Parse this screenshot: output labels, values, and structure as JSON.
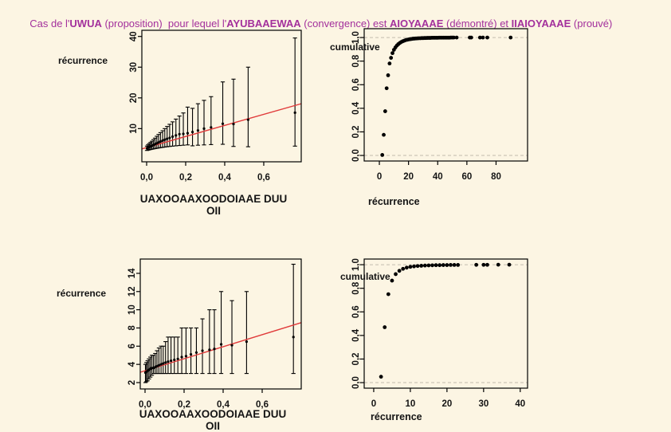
{
  "page": {
    "background": "#fcf5e3",
    "text_color": "#141414"
  },
  "title": {
    "color": "#a3309c",
    "segments": [
      {
        "text": "Cas de l'",
        "bold": false
      },
      {
        "text": "UWUA",
        "bold": true
      },
      {
        "text": " (proposition)  pour lequel l'",
        "bold": false
      },
      {
        "text": "AYUBAAEWAA",
        "bold": true
      },
      {
        "text": " (convergence) est ",
        "bold": false
      },
      {
        "text": "AIOYAAAE",
        "bold": true
      },
      {
        "text": " (démontré) et ",
        "bold": false
      },
      {
        "text": "IIAIOYAAAE",
        "bold": true
      },
      {
        "text": " (prouvé)",
        "bold": false
      }
    ]
  },
  "chart_data": [
    {
      "name": "top-left-errorbar",
      "type": "errorbar",
      "xlabel": "UAXOOAAXOODOIAAE DUU OII",
      "ylabel": "récurrence",
      "xlim": [
        -0.0245,
        0.792
      ],
      "ylim": [
        -0.8,
        42
      ],
      "xticks": {
        "values": [
          0,
          0.2,
          0.4,
          0.6
        ],
        "labels": [
          "0,0",
          "0,2",
          "0,4",
          "0,6"
        ]
      },
      "yticks": {
        "values": [
          10,
          20,
          30,
          40
        ],
        "labels": [
          "10",
          "20",
          "30",
          "40"
        ]
      },
      "trend": {
        "intercept": 3.85,
        "slope": 18,
        "color": "#e03a3a"
      },
      "bars": [
        [
          0.002,
          2.9,
          4.3,
          3.6
        ],
        [
          0.007,
          3.0,
          4.7,
          3.8
        ],
        [
          0.013,
          3.1,
          5.1,
          4.0
        ],
        [
          0.02,
          3.2,
          5.5,
          4.2
        ],
        [
          0.027,
          3.3,
          5.9,
          4.4
        ],
        [
          0.035,
          3.4,
          6.4,
          4.7
        ],
        [
          0.043,
          3.5,
          6.9,
          4.9
        ],
        [
          0.052,
          3.6,
          7.5,
          5.2
        ],
        [
          0.061,
          3.7,
          8.1,
          5.5
        ],
        [
          0.071,
          3.8,
          8.7,
          5.8
        ],
        [
          0.082,
          3.9,
          9.3,
          6.1
        ],
        [
          0.093,
          4.0,
          10.0,
          6.4
        ],
        [
          0.105,
          4.1,
          10.7,
          6.7
        ],
        [
          0.118,
          4.2,
          11.4,
          7.0
        ],
        [
          0.133,
          4.3,
          12.2,
          7.4
        ],
        [
          0.15,
          4.4,
          13.1,
          7.8
        ],
        [
          0.168,
          4.5,
          14.1,
          8.2
        ],
        [
          0.188,
          4.6,
          15.1,
          8.3
        ],
        [
          0.21,
          4.7,
          17.0,
          8.5
        ],
        [
          0.235,
          4.4,
          16.6,
          8.9
        ],
        [
          0.263,
          4.6,
          18.1,
          9.4
        ],
        [
          0.294,
          4.7,
          19.2,
          10.0
        ],
        [
          0.33,
          4.8,
          20.4,
          10.4
        ],
        [
          0.39,
          4.9,
          25.2,
          11.6
        ],
        [
          0.445,
          4.2,
          26.1,
          11.5
        ],
        [
          0.52,
          4.1,
          30.0,
          12.9
        ],
        [
          0.76,
          4.3,
          39.5,
          15.2
        ]
      ]
    },
    {
      "name": "top-right-cumulative",
      "type": "ecdf_scatter",
      "xlabel": "récurrence",
      "ylabel": "cumulative",
      "xlim": [
        -10.4,
        101.6
      ],
      "ylim": [
        -0.047,
        1.075
      ],
      "xticks": {
        "values": [
          0,
          20,
          40,
          60,
          80
        ],
        "labels": [
          "0",
          "20",
          "40",
          "60",
          "80"
        ]
      },
      "yticks": {
        "values": [
          0,
          0.2,
          0.4,
          0.6,
          0.8,
          1
        ],
        "labels": [
          "0,0",
          "0,2",
          "0,4",
          "0,6",
          "0,8",
          "1,0"
        ]
      },
      "hlines": {
        "values": [
          0,
          1
        ],
        "color": "#c2bcae",
        "dash": "4,3"
      },
      "points": [
        [
          2,
          0.004
        ],
        [
          3,
          0.175
        ],
        [
          4,
          0.375
        ],
        [
          5,
          0.57
        ],
        [
          6,
          0.68
        ],
        [
          7,
          0.78
        ],
        [
          8,
          0.828
        ],
        [
          9,
          0.868
        ],
        [
          10,
          0.896
        ],
        [
          11,
          0.916
        ],
        [
          12,
          0.932
        ],
        [
          13,
          0.944
        ],
        [
          14,
          0.954
        ],
        [
          15,
          0.962
        ],
        [
          16,
          0.968
        ],
        [
          17,
          0.973
        ],
        [
          18,
          0.978
        ],
        [
          19,
          0.981
        ],
        [
          20,
          0.984
        ],
        [
          21,
          0.986
        ],
        [
          22,
          0.988
        ],
        [
          23,
          0.99
        ],
        [
          24,
          0.991
        ],
        [
          25,
          0.992
        ],
        [
          26,
          0.993
        ],
        [
          27,
          0.994
        ],
        [
          28,
          0.994
        ],
        [
          29,
          0.995
        ],
        [
          30,
          0.995
        ],
        [
          31,
          0.996
        ],
        [
          32,
          0.996
        ],
        [
          33,
          0.997
        ],
        [
          34,
          0.997
        ],
        [
          35,
          0.997
        ],
        [
          36,
          0.998
        ],
        [
          37,
          0.998
        ],
        [
          38,
          0.998
        ],
        [
          39,
          0.998
        ],
        [
          40,
          0.998
        ],
        [
          41,
          0.999
        ],
        [
          42,
          0.999
        ],
        [
          43,
          0.999
        ],
        [
          44,
          0.999
        ],
        [
          45,
          0.999
        ],
        [
          46,
          0.999
        ],
        [
          47,
          0.999
        ],
        [
          48,
          0.999
        ],
        [
          49,
          1.0
        ],
        [
          50,
          1.0
        ],
        [
          51,
          1.0
        ],
        [
          53,
          1.0
        ],
        [
          62,
          1.0
        ],
        [
          63,
          1.0
        ],
        [
          69,
          1.0
        ],
        [
          71,
          1.0
        ],
        [
          74,
          1.0
        ],
        [
          90,
          1.0
        ]
      ]
    },
    {
      "name": "bottom-left-errorbar",
      "type": "errorbar",
      "xlabel": "UAXOOAAXOODOIAAE DUU OII",
      "ylabel": "récurrence",
      "xlim": [
        -0.0245,
        0.8
      ],
      "ylim": [
        1.3,
        15.57
      ],
      "xticks": {
        "values": [
          0,
          0.2,
          0.4,
          0.6
        ],
        "labels": [
          "0,0",
          "0,2",
          "0,4",
          "0,6"
        ]
      },
      "yticks": {
        "values": [
          2,
          4,
          6,
          8,
          10,
          12,
          14
        ],
        "labels": [
          "2",
          "4",
          "6",
          "8",
          "10",
          "12",
          "14"
        ]
      },
      "trend": {
        "intercept": 3.3,
        "slope": 6.6,
        "color": "#e03a3a"
      },
      "bars": [
        [
          0.002,
          2.0,
          4.0,
          3.1
        ],
        [
          0.007,
          2.1,
          4.2,
          3.2
        ],
        [
          0.013,
          2.2,
          4.4,
          3.3
        ],
        [
          0.02,
          2.4,
          4.6,
          3.4
        ],
        [
          0.027,
          2.6,
          4.8,
          3.5
        ],
        [
          0.035,
          2.8,
          5.0,
          3.6
        ],
        [
          0.043,
          3.0,
          5.0,
          3.6
        ],
        [
          0.052,
          3.0,
          5.2,
          3.7
        ],
        [
          0.061,
          3.0,
          5.5,
          3.8
        ],
        [
          0.071,
          3.0,
          5.8,
          3.9
        ],
        [
          0.082,
          3.0,
          6.0,
          4.0
        ],
        [
          0.093,
          3.0,
          6.0,
          4.1
        ],
        [
          0.105,
          3.0,
          6.5,
          4.2
        ],
        [
          0.118,
          3.0,
          7.0,
          4.3
        ],
        [
          0.133,
          3.0,
          7.0,
          4.4
        ],
        [
          0.15,
          3.0,
          7.0,
          4.5
        ],
        [
          0.168,
          3.0,
          7.0,
          4.6
        ],
        [
          0.188,
          3.0,
          8.0,
          4.8
        ],
        [
          0.21,
          3.0,
          8.0,
          4.9
        ],
        [
          0.235,
          3.0,
          8.0,
          5.1
        ],
        [
          0.263,
          3.0,
          8.0,
          5.3
        ],
        [
          0.294,
          3.0,
          9.0,
          5.5
        ],
        [
          0.33,
          3.0,
          10.0,
          5.6
        ],
        [
          0.355,
          3.0,
          10.0,
          5.7
        ],
        [
          0.39,
          3.0,
          12.0,
          6.2
        ],
        [
          0.445,
          3.0,
          11.0,
          6.1
        ],
        [
          0.52,
          3.0,
          12.0,
          6.5
        ],
        [
          0.76,
          3.0,
          15.0,
          7.0
        ]
      ]
    },
    {
      "name": "bottom-right-cumulative",
      "type": "ecdf_scatter",
      "xlabel": "récurrence",
      "ylabel": "cumulative",
      "xlim": [
        -2.6,
        42
      ],
      "ylim": [
        -0.047,
        1.048
      ],
      "xticks": {
        "values": [
          0,
          10,
          20,
          30,
          40
        ],
        "labels": [
          "0",
          "10",
          "20",
          "30",
          "40"
        ]
      },
      "yticks": {
        "values": [
          0,
          0.2,
          0.4,
          0.6,
          0.8,
          1
        ],
        "labels": [
          "0,0",
          "0,2",
          "0,4",
          "0,6",
          "0,8",
          "1,0"
        ]
      },
      "hlines": {
        "values": [
          0,
          1
        ],
        "color": "#c2bcae",
        "dash": "4,3"
      },
      "points": [
        [
          2,
          0.05
        ],
        [
          3,
          0.47
        ],
        [
          4,
          0.75
        ],
        [
          5,
          0.865
        ],
        [
          6,
          0.92
        ],
        [
          7,
          0.948
        ],
        [
          8,
          0.965
        ],
        [
          9,
          0.975
        ],
        [
          10,
          0.982
        ],
        [
          11,
          0.986
        ],
        [
          12,
          0.989
        ],
        [
          13,
          0.991
        ],
        [
          14,
          0.993
        ],
        [
          15,
          0.994
        ],
        [
          16,
          0.995
        ],
        [
          17,
          0.996
        ],
        [
          18,
          0.996
        ],
        [
          19,
          0.997
        ],
        [
          20,
          0.997
        ],
        [
          21,
          0.998
        ],
        [
          22,
          0.998
        ],
        [
          23,
          0.998
        ],
        [
          28,
          0.999
        ],
        [
          30,
          0.999
        ],
        [
          31,
          0.999
        ],
        [
          34,
          1.0
        ],
        [
          37,
          1.0
        ]
      ]
    }
  ]
}
